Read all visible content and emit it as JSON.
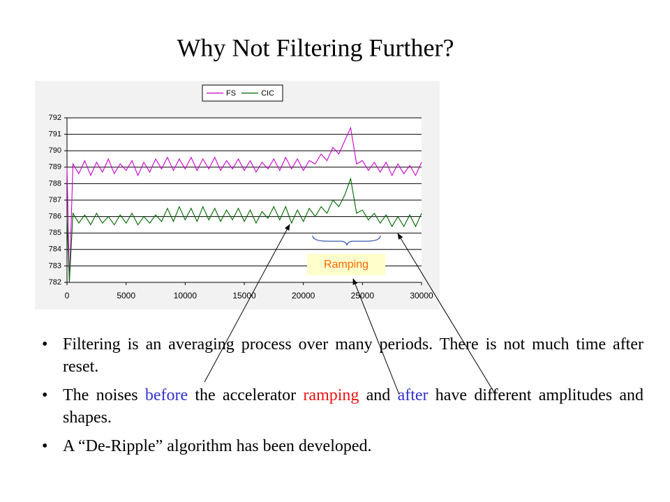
{
  "title": "Why Not Filtering Further?",
  "annotation": "Ramping",
  "bullets": [
    [
      "Filtering is an averaging process over many periods.  There is not much time after reset."
    ],
    [
      "The noises ",
      "before",
      " the accelerator ",
      "ramping",
      " and ",
      "after",
      " have different amplitudes and shapes."
    ],
    [
      "A “De-Ripple” algorithm has been developed."
    ]
  ],
  "chart_data": {
    "type": "line",
    "x": [
      0,
      200,
      500,
      1000,
      1500,
      2000,
      2500,
      3000,
      3500,
      4000,
      4500,
      5000,
      5500,
      6000,
      6500,
      7000,
      7500,
      8000,
      8500,
      9000,
      9500,
      10000,
      10500,
      11000,
      11500,
      12000,
      12500,
      13000,
      13500,
      14000,
      14500,
      15000,
      15500,
      16000,
      16500,
      17000,
      17500,
      18000,
      18500,
      19000,
      19500,
      20000,
      20500,
      21000,
      21500,
      22000,
      22500,
      23000,
      23500,
      24000,
      24500,
      25000,
      25500,
      26000,
      26500,
      27000,
      27500,
      28000,
      28500,
      29000,
      29500,
      30000
    ],
    "series": [
      {
        "name": "FS",
        "color": "#cc00cc",
        "values": [
          789.0,
          782.0,
          789.2,
          788.6,
          789.4,
          788.5,
          789.3,
          788.7,
          789.5,
          788.6,
          789.2,
          788.8,
          789.4,
          788.5,
          789.3,
          788.7,
          789.5,
          788.9,
          789.6,
          788.8,
          789.5,
          788.9,
          789.6,
          788.8,
          789.5,
          788.9,
          789.6,
          788.8,
          789.4,
          788.9,
          789.5,
          788.8,
          789.4,
          788.7,
          789.3,
          788.9,
          789.5,
          788.8,
          789.6,
          788.9,
          789.5,
          788.8,
          789.4,
          789.2,
          789.8,
          789.4,
          790.2,
          789.8,
          790.6,
          791.4,
          789.2,
          789.4,
          788.8,
          789.3,
          788.7,
          789.3,
          788.5,
          789.2,
          788.6,
          789.1,
          788.5,
          789.3
        ]
      },
      {
        "name": "CIC",
        "color": "#006600",
        "values": [
          786.0,
          782.0,
          786.2,
          785.6,
          786.1,
          785.5,
          786.2,
          785.6,
          786.0,
          785.5,
          786.1,
          785.6,
          786.2,
          785.5,
          786.0,
          785.6,
          786.1,
          785.7,
          786.5,
          785.7,
          786.6,
          785.8,
          786.5,
          785.7,
          786.6,
          785.8,
          786.5,
          785.7,
          786.4,
          785.8,
          786.5,
          785.7,
          786.4,
          785.6,
          786.3,
          785.9,
          786.6,
          785.8,
          786.6,
          785.6,
          786.4,
          785.7,
          786.5,
          786.0,
          786.6,
          786.2,
          787.0,
          786.6,
          787.3,
          788.3,
          786.2,
          786.4,
          785.8,
          786.2,
          785.6,
          786.1,
          785.4,
          786.0,
          785.4,
          786.1,
          785.4,
          786.2
        ]
      }
    ],
    "xlim": [
      0,
      30000
    ],
    "xticks": [
      0,
      5000,
      10000,
      15000,
      20000,
      25000,
      30000
    ],
    "ylim": [
      782,
      792
    ],
    "yticks": [
      782,
      783,
      784,
      785,
      786,
      787,
      788,
      789,
      790,
      791,
      792
    ],
    "grid": true
  }
}
